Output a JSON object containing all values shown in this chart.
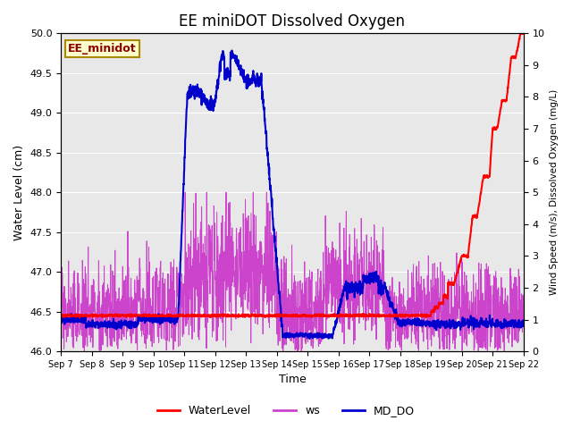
{
  "title": "EE miniDOT Dissolved Oxygen",
  "xlabel": "Time",
  "ylabel_left": "Water Level (cm)",
  "ylabel_right": "Wind Speed (m/s), Dissolved Oxygen (mg/L)",
  "legend_label": "EE_minidot",
  "ylim_left": [
    46.0,
    50.0
  ],
  "ylim_right": [
    0.0,
    10.0
  ],
  "background_color": "#e8e8e8",
  "title_fontsize": 12,
  "label_fontsize": 9,
  "tick_fontsize": 8,
  "series": {
    "WaterLevel": {
      "color": "#ff0000",
      "linewidth": 1.5
    },
    "ws": {
      "color": "#cc44cc",
      "linewidth": 0.7
    },
    "MD_DO": {
      "color": "#0000cc",
      "linewidth": 1.5
    }
  },
  "yticks_left": [
    46.0,
    46.5,
    47.0,
    47.5,
    48.0,
    48.5,
    49.0,
    49.5,
    50.0
  ],
  "yticks_right": [
    0.0,
    1.0,
    2.0,
    3.0,
    4.0,
    5.0,
    6.0,
    7.0,
    8.0,
    9.0,
    10.0
  ],
  "xtick_labels": [
    "Sep 7",
    "Sep 8",
    "Sep 9",
    "Sep 10",
    "Sep 11",
    "Sep 12",
    "Sep 13",
    "Sep 14",
    "Sep 15",
    "Sep 16",
    "Sep 17",
    "Sep 18",
    "Sep 19",
    "Sep 20",
    "Sep 21",
    "Sep 22"
  ],
  "legend_box_facecolor": "#ffffcc",
  "legend_box_edgecolor": "#aa8800",
  "legend_label_color": "#8B0000"
}
